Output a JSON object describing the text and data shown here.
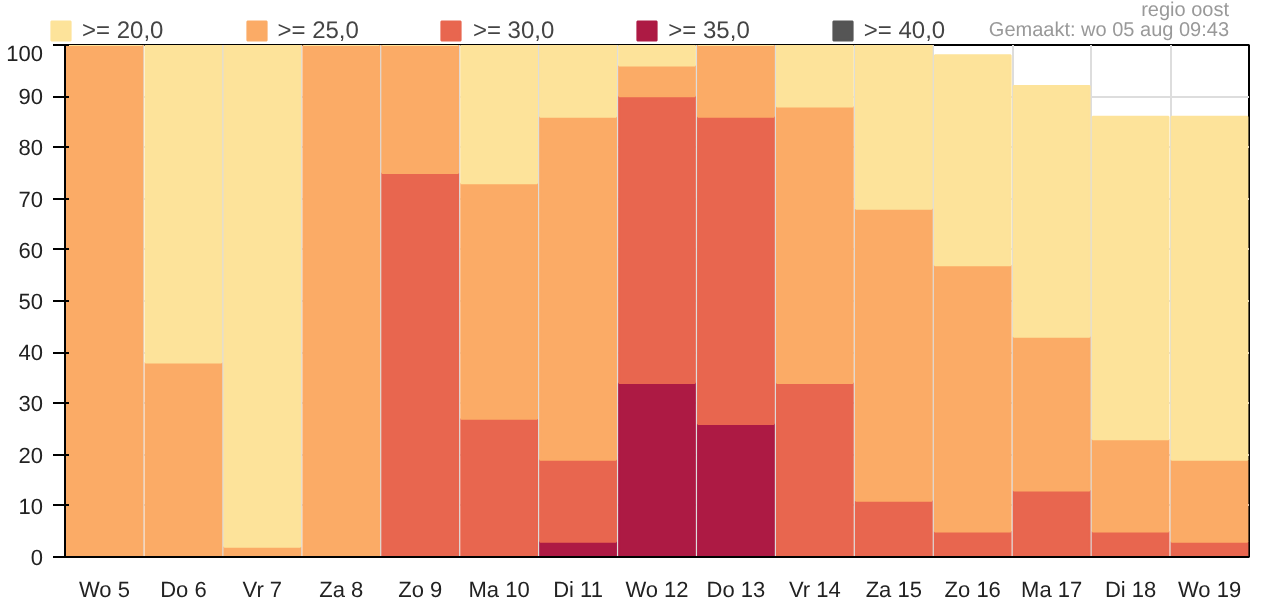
{
  "chart_data": {
    "type": "bar",
    "stacked": true,
    "categories": [
      "Wo 5",
      "Do 6",
      "Vr 7",
      "Za 8",
      "Zo 9",
      "Ma 10",
      "Di 11",
      "Wo 12",
      "Do 13",
      "Vr 14",
      "Za 15",
      "Zo 16",
      "Ma 17",
      "Di 18",
      "Wo 19"
    ],
    "series": [
      {
        "name": ">= 40,0",
        "color": "#555555",
        "values": [
          0,
          0,
          0,
          0,
          0,
          0,
          0,
          0,
          0,
          0,
          0,
          0,
          0,
          0,
          0
        ]
      },
      {
        "name": ">= 35,0",
        "color": "#ad1a44",
        "values": [
          0,
          0,
          0,
          0,
          0,
          0,
          3,
          34,
          26,
          0,
          0,
          0,
          0,
          0,
          0
        ]
      },
      {
        "name": ">= 30,0",
        "color": "#e8664f",
        "values": [
          0,
          0,
          0,
          0,
          75,
          27,
          16,
          56,
          60,
          34,
          11,
          5,
          13,
          5,
          3
        ]
      },
      {
        "name": ">= 25,0",
        "color": "#fbab66",
        "values": [
          100,
          38,
          2,
          100,
          25,
          46,
          67,
          6,
          14,
          54,
          57,
          52,
          30,
          18,
          16
        ]
      },
      {
        "name": ">= 20,0",
        "color": "#fde39a",
        "values": [
          0,
          62,
          98,
          0,
          0,
          27,
          14,
          4,
          0,
          12,
          32,
          41,
          49,
          63,
          67
        ]
      }
    ],
    "ylim": [
      0,
      100
    ],
    "yticks": [
      0,
      10,
      20,
      30,
      40,
      50,
      60,
      70,
      80,
      90,
      100
    ],
    "grid": true,
    "legend": "top",
    "annotations": [
      "regio oost",
      "Gemaakt: wo 05 aug 09:43"
    ]
  }
}
